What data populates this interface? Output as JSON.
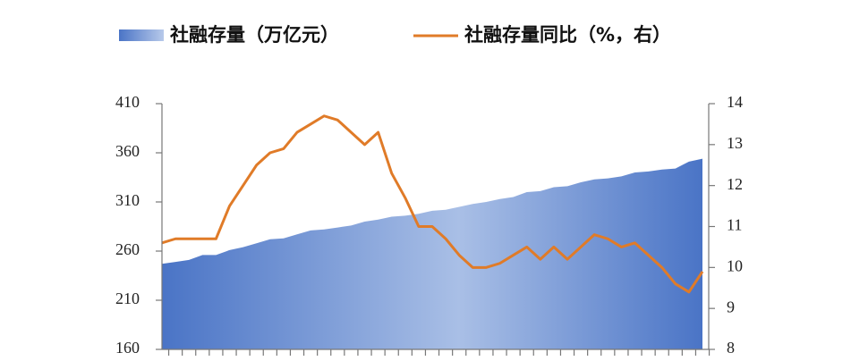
{
  "chart_data": {
    "type": "area_line",
    "categories": [
      null,
      null,
      null,
      null,
      null,
      null,
      null,
      null,
      null,
      null,
      null,
      null,
      null,
      null,
      null,
      null,
      null,
      null,
      null,
      null,
      null,
      null,
      null,
      null,
      null,
      null,
      null,
      null,
      null,
      null,
      null,
      null,
      null,
      null,
      null,
      null,
      null,
      null,
      null,
      null,
      null
    ],
    "series": [
      {
        "name": "社融存量（万亿元）",
        "color": "#4a74c6",
        "type": "area",
        "values": [
          247,
          249,
          251,
          256,
          256,
          261,
          264,
          268,
          272,
          273,
          277,
          281,
          282,
          284,
          286,
          290,
          292,
          295,
          296,
          298,
          301,
          302,
          305,
          308,
          310,
          313,
          315,
          320,
          321,
          325,
          326,
          330,
          333,
          334,
          336,
          340,
          341,
          343,
          344,
          351,
          354
        ]
      },
      {
        "name": "社融存量同比（%，右）",
        "color": "#e07b28",
        "type": "line",
        "axis": "y2",
        "values": [
          10.6,
          10.7,
          10.7,
          10.7,
          10.7,
          11.5,
          12.0,
          12.5,
          12.8,
          12.9,
          13.3,
          13.5,
          13.7,
          13.6,
          13.3,
          13.0,
          13.3,
          12.3,
          11.7,
          11.0,
          11.0,
          10.7,
          10.3,
          10.0,
          10.0,
          10.1,
          10.3,
          10.5,
          10.2,
          10.5,
          10.2,
          10.5,
          10.8,
          10.7,
          10.5,
          10.6,
          10.3,
          10.0,
          9.6,
          9.4,
          9.9
        ]
      }
    ],
    "ylim": [
      160,
      410
    ],
    "yticks": [
      160,
      210,
      260,
      310,
      360,
      410
    ],
    "y2lim": [
      8,
      14
    ],
    "y2ticks": [
      8,
      9,
      10,
      11,
      12,
      13,
      14
    ],
    "legend": "top"
  }
}
